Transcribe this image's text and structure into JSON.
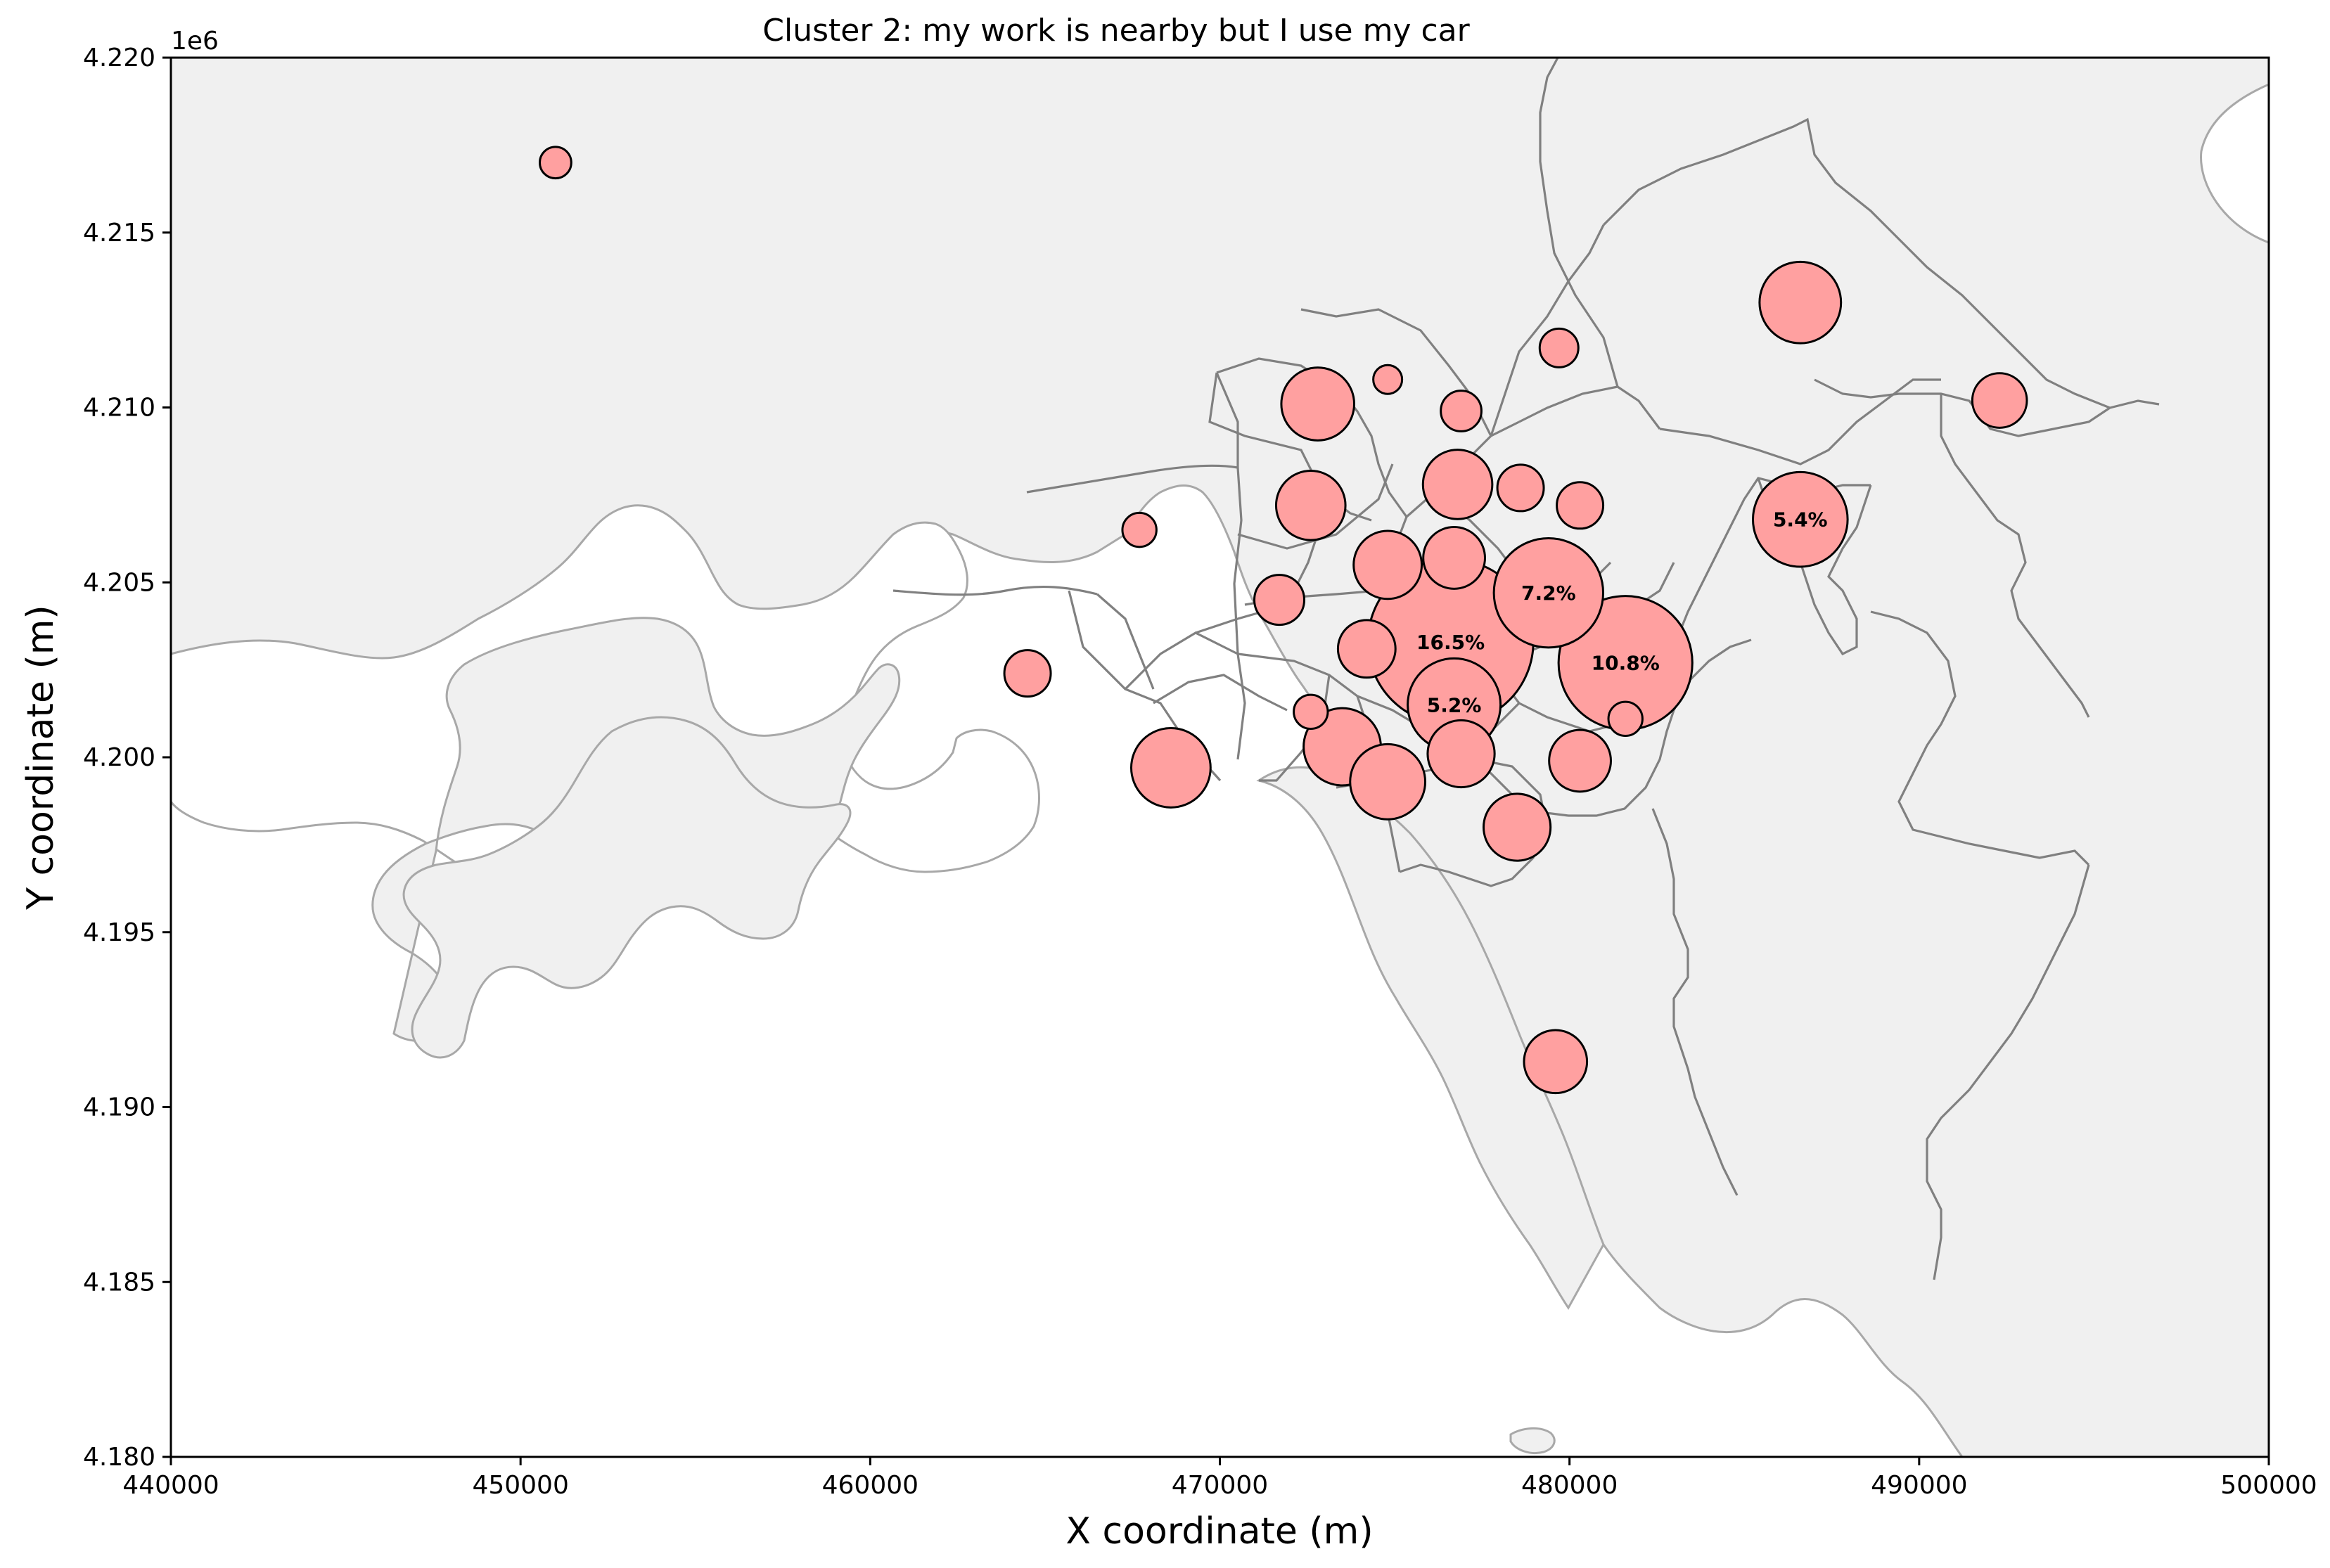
{
  "chart_data": {
    "type": "scatter",
    "title": "Cluster 2: my work is nearby but I use my car",
    "xlabel": "X coordinate (m)",
    "ylabel": "Y coordinate (m)",
    "xlim": [
      440000,
      500000
    ],
    "ylim": [
      4180000,
      4220000
    ],
    "y_offset_label": "1e6",
    "x_ticks": [
      440000,
      450000,
      460000,
      470000,
      480000,
      490000,
      500000
    ],
    "x_tick_labels": [
      "440000",
      "450000",
      "460000",
      "470000",
      "480000",
      "490000",
      "500000"
    ],
    "y_ticks": [
      4180000,
      4185000,
      4190000,
      4195000,
      4200000,
      4205000,
      4210000,
      4215000,
      4220000
    ],
    "y_tick_labels": [
      "4.180",
      "4.185",
      "4.190",
      "4.195",
      "4.200",
      "4.205",
      "4.210",
      "4.215",
      "4.220"
    ],
    "grid": false,
    "basemap": "municipality boundaries",
    "colors": {
      "bubble_fill": "#ffa0a0",
      "bubble_edge": "#000000",
      "land": "#f0f0f0",
      "coast": "#a8a8a8",
      "boundary": "#808080"
    },
    "points": [
      {
        "x": 476600,
        "y": 4203300,
        "share": 16.5,
        "label": "16.5%"
      },
      {
        "x": 481600,
        "y": 4202700,
        "share": 10.8,
        "label": "10.8%"
      },
      {
        "x": 479400,
        "y": 4204700,
        "share": 7.2,
        "label": "7.2%"
      },
      {
        "x": 486600,
        "y": 4206800,
        "share": 5.4,
        "label": "5.4%"
      },
      {
        "x": 476700,
        "y": 4201500,
        "share": 5.2,
        "label": "5.2%"
      },
      {
        "x": 486600,
        "y": 4213000,
        "share": 4.0
      },
      {
        "x": 468600,
        "y": 4199700,
        "share": 3.8
      },
      {
        "x": 473500,
        "y": 4200300,
        "share": 3.6
      },
      {
        "x": 474800,
        "y": 4199300,
        "share": 3.4
      },
      {
        "x": 472800,
        "y": 4210100,
        "share": 3.2
      },
      {
        "x": 476800,
        "y": 4207800,
        "share": 2.9
      },
      {
        "x": 472600,
        "y": 4207200,
        "share": 2.9
      },
      {
        "x": 474800,
        "y": 4205500,
        "share": 2.8
      },
      {
        "x": 476900,
        "y": 4200100,
        "share": 2.7
      },
      {
        "x": 478500,
        "y": 4198000,
        "share": 2.7
      },
      {
        "x": 479600,
        "y": 4191300,
        "share": 2.4
      },
      {
        "x": 476700,
        "y": 4205700,
        "share": 2.3
      },
      {
        "x": 474200,
        "y": 4203100,
        "share": 2.0
      },
      {
        "x": 480300,
        "y": 4199900,
        "share": 2.3
      },
      {
        "x": 492300,
        "y": 4210200,
        "share": 1.8
      },
      {
        "x": 471700,
        "y": 4204500,
        "share": 1.5
      },
      {
        "x": 464500,
        "y": 4202400,
        "share": 1.3
      },
      {
        "x": 478600,
        "y": 4207700,
        "share": 1.3
      },
      {
        "x": 480300,
        "y": 4207200,
        "share": 1.3
      },
      {
        "x": 476900,
        "y": 4209900,
        "share": 1.0
      },
      {
        "x": 479700,
        "y": 4211700,
        "share": 0.9
      },
      {
        "x": 451000,
        "y": 4217000,
        "share": 0.6
      },
      {
        "x": 467700,
        "y": 4206500,
        "share": 0.7
      },
      {
        "x": 472600,
        "y": 4201300,
        "share": 0.7
      },
      {
        "x": 474800,
        "y": 4210800,
        "share": 0.5
      },
      {
        "x": 481600,
        "y": 4201100,
        "share": 0.7
      }
    ]
  }
}
